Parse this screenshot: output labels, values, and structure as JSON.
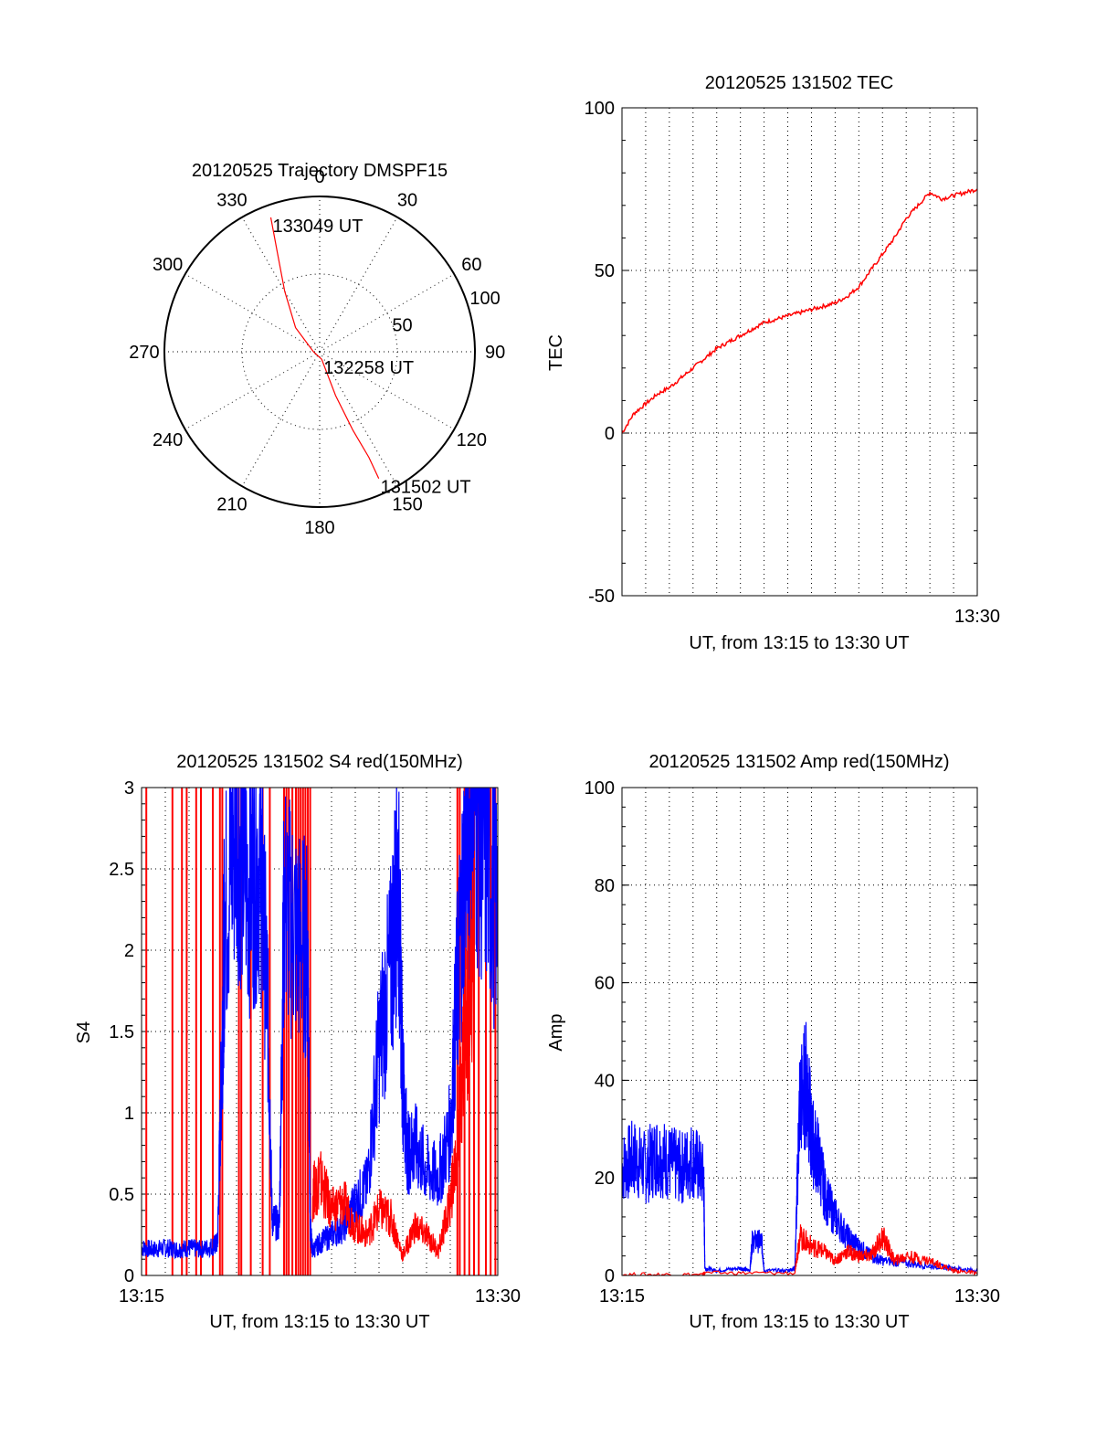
{
  "colors": {
    "red": "#ff0000",
    "blue": "#0000ff",
    "axis": "#000000",
    "background": "#ffffff"
  },
  "chart_data": [
    {
      "id": "trajectory",
      "type": "polar",
      "title": "20120525 Trajectory DMSPF15",
      "angle_labels": [
        "0",
        "30",
        "60",
        "90",
        "120",
        "150",
        "180",
        "210",
        "240",
        "270",
        "300",
        "330"
      ],
      "angle_values": [
        0,
        30,
        60,
        90,
        120,
        150,
        180,
        210,
        240,
        270,
        300,
        330
      ],
      "radial_ticks": [
        {
          "value": 50,
          "label": "50"
        },
        {
          "value": 100,
          "label": "100"
        }
      ],
      "rmax": 100,
      "points_annotated": [
        {
          "label": "133049 UT",
          "azimuth": 340,
          "zenith": 92
        },
        {
          "label": "132258 UT",
          "azimuth": 165,
          "zenith": 5
        },
        {
          "label": "131502 UT",
          "azimuth": 155,
          "zenith": 90
        }
      ],
      "series": [
        {
          "color": "red",
          "points": [
            [
              340,
              92
            ],
            [
              337,
              70
            ],
            [
              330,
              45
            ],
            [
              315,
              22
            ],
            [
              270,
              4
            ],
            [
              165,
              5
            ],
            [
              160,
              30
            ],
            [
              157,
              55
            ],
            [
              155,
              75
            ],
            [
              155,
              90
            ]
          ]
        }
      ]
    },
    {
      "id": "tec",
      "type": "line",
      "title": "20120525 131502 TEC",
      "xlabel": "UT, from 13:15 to 13:30 UT",
      "ylabel": "TEC",
      "xlim": [
        0,
        15
      ],
      "ylim": [
        -50,
        100
      ],
      "ytick_labels": [
        "-50",
        "0",
        "50",
        "100"
      ],
      "ytick_values": [
        -50,
        0,
        50,
        100
      ],
      "xtick_labels": [
        {
          "value": 15,
          "label": "13:30"
        }
      ],
      "grid": true,
      "series": [
        {
          "color": "red",
          "x": [
            0,
            0.5,
            1.0,
            1.5,
            2.0,
            2.5,
            3.0,
            3.5,
            4.0,
            4.5,
            5.0,
            5.5,
            6.0,
            6.5,
            7.0,
            7.5,
            8.0,
            8.5,
            9.0,
            9.5,
            10.0,
            10.5,
            11.0,
            11.5,
            12.0,
            12.5,
            13.0,
            13.5,
            14.0,
            14.5,
            15.0
          ],
          "y": [
            0,
            6,
            9,
            12,
            14,
            17,
            20,
            23,
            26,
            28,
            30,
            32,
            34,
            35,
            36,
            37,
            38,
            39,
            40,
            42,
            45,
            50,
            55,
            60,
            66,
            70,
            74,
            72,
            73,
            74,
            75
          ]
        }
      ]
    },
    {
      "id": "s4",
      "type": "line",
      "title": "20120525 131502 S4 red(150MHz)",
      "xlabel": "UT, from 13:15 to 13:30 UT",
      "ylabel": "S4",
      "xlim": [
        0,
        15
      ],
      "ylim": [
        0,
        3
      ],
      "ytick_labels": [
        "0",
        "0.5",
        "1",
        "1.5",
        "2",
        "2.5",
        "3"
      ],
      "ytick_values": [
        0,
        0.5,
        1,
        1.5,
        2,
        2.5,
        3
      ],
      "xtick_labels": [
        {
          "value": 0,
          "label": "13:15"
        },
        {
          "value": 15,
          "label": "13:30"
        }
      ],
      "grid": true,
      "red_vertical_lines": [
        0.2,
        1.3,
        1.7,
        1.9,
        2.3,
        2.5,
        3.0,
        3.3,
        3.4,
        4.1,
        4.2,
        4.6,
        5.1,
        5.4,
        6.0,
        6.1,
        6.2,
        6.35,
        6.5,
        6.6,
        6.7,
        6.8,
        6.9,
        7.0,
        7.1,
        13.3,
        13.4,
        13.6,
        13.8,
        14.0,
        14.2,
        14.5,
        14.7,
        14.9
      ],
      "series": [
        {
          "name": "",
          "color": "blue",
          "x": [
            0,
            0.5,
            1.0,
            1.5,
            2.0,
            2.5,
            3.0,
            3.2,
            3.4,
            3.5,
            4.0,
            4.5,
            5.0,
            5.3,
            5.5,
            5.8,
            6.0,
            6.5,
            7.0,
            7.1,
            7.2,
            7.5,
            8.0,
            8.5,
            9.0,
            9.5,
            10.0,
            10.5,
            10.8,
            11.0,
            11.2,
            11.5,
            12.0,
            12.5,
            13.0,
            13.3,
            13.6,
            14.0,
            14.5,
            15.0
          ],
          "y": [
            0.17,
            0.16,
            0.17,
            0.16,
            0.17,
            0.16,
            0.18,
            0.2,
            1.5,
            2.2,
            2.8,
            2.4,
            2.6,
            1.7,
            0.35,
            0.3,
            2.3,
            2.1,
            2.0,
            0.3,
            0.15,
            0.2,
            0.25,
            0.3,
            0.45,
            0.55,
            1.4,
            1.9,
            2.5,
            1.2,
            0.75,
            0.8,
            0.65,
            0.6,
            0.9,
            1.8,
            2.5,
            2.9,
            2.6,
            2.2
          ]
        },
        {
          "name": "",
          "color": "red",
          "x": [
            7.2,
            7.5,
            8.0,
            8.5,
            9.0,
            9.5,
            10.0,
            10.5,
            11.0,
            11.5,
            12.0,
            12.5,
            13.0,
            13.3,
            13.6,
            14.0
          ],
          "y": [
            0.5,
            0.6,
            0.4,
            0.45,
            0.3,
            0.25,
            0.4,
            0.35,
            0.12,
            0.3,
            0.25,
            0.15,
            0.45,
            0.8,
            1.5,
            2.0
          ]
        }
      ]
    },
    {
      "id": "amp",
      "type": "line",
      "title": "20120525 131502 Amp red(150MHz)",
      "xlabel": "UT, from 13:15 to 13:30 UT",
      "ylabel": "Amp",
      "xlim": [
        0,
        15
      ],
      "ylim": [
        0,
        100
      ],
      "ytick_labels": [
        "0",
        "20",
        "40",
        "60",
        "80",
        "100"
      ],
      "ytick_values": [
        0,
        20,
        40,
        60,
        80,
        100
      ],
      "xtick_labels": [
        {
          "value": 0,
          "label": "13:15"
        },
        {
          "value": 15,
          "label": "13:30"
        }
      ],
      "grid": true,
      "series": [
        {
          "name": "",
          "color": "blue",
          "x": [
            0,
            0.5,
            1.0,
            1.5,
            2.0,
            2.5,
            3.0,
            3.45,
            3.5,
            4.0,
            5.0,
            5.4,
            5.5,
            5.9,
            6.0,
            7.0,
            7.3,
            7.5,
            7.8,
            8.0,
            8.3,
            8.6,
            9.0,
            9.5,
            10.0,
            10.5,
            11.0,
            12.0,
            13.0,
            14.0,
            15.0
          ],
          "y": [
            22,
            24,
            22,
            25,
            23,
            22,
            24,
            20,
            1.5,
            1,
            1.5,
            1,
            7,
            7,
            1,
            1,
            1.5,
            35,
            40,
            28,
            24,
            16,
            12,
            8,
            6,
            4,
            3,
            2.5,
            2,
            1.5,
            1
          ]
        },
        {
          "name": "",
          "color": "red",
          "x": [
            0,
            3.4,
            3.5,
            7.3,
            7.5,
            8.0,
            8.5,
            9.0,
            9.5,
            10.0,
            10.5,
            11.0,
            11.5,
            12.0,
            13.0,
            14.0,
            15.0
          ],
          "y": [
            0.2,
            0.2,
            0.5,
            0.5,
            8,
            6,
            5,
            3,
            5,
            4,
            4,
            8,
            3,
            4,
            3,
            1,
            0.5
          ]
        }
      ]
    }
  ]
}
